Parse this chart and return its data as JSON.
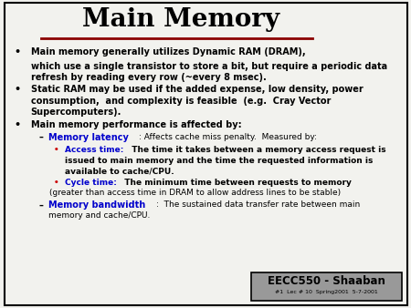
{
  "title": "Main Memory",
  "title_underline_color": "#8B0000",
  "bg_color": "#f2f2ee",
  "border_color": "#000000",
  "black": "#000000",
  "blue": "#0000CC",
  "red_bullet": "#CC0000",
  "footer_bg": "#999999",
  "footer_text": "EECC550 - Shaaban",
  "footer_sub": "#1  Lec # 10  Spring2001  5-7-2001"
}
